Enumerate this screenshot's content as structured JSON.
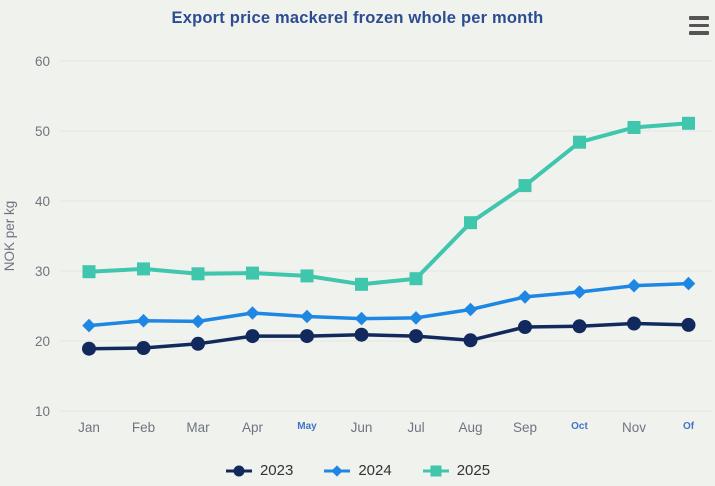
{
  "chart_data": {
    "type": "line",
    "title": "Export price mackerel frozen whole per month",
    "xlabel": "",
    "ylabel": "NOK per kg",
    "ylim": [
      10,
      60
    ],
    "y_ticks": [
      10,
      20,
      30,
      40,
      50,
      60
    ],
    "grid": "horizontal",
    "legend_position": "bottom-center",
    "categories": [
      "Jan",
      "Feb",
      "Mar",
      "Apr",
      "May",
      "Jun",
      "Jul",
      "Aug",
      "Sep",
      "Oct",
      "Nov",
      "Of"
    ],
    "x_tick_styles": [
      "normal",
      "normal",
      "normal",
      "normal",
      "small-blue",
      "normal",
      "normal",
      "normal",
      "normal",
      "small-blue",
      "normal",
      "small-blue"
    ],
    "series": [
      {
        "name": "2023",
        "color": "#12295d",
        "marker": "circle",
        "values": [
          18.9,
          19.0,
          19.6,
          20.7,
          20.7,
          20.9,
          20.7,
          20.1,
          22.0,
          22.1,
          22.5,
          22.3
        ]
      },
      {
        "name": "2024",
        "color": "#1e87e4",
        "marker": "diamond",
        "values": [
          22.2,
          22.9,
          22.8,
          24.0,
          23.5,
          23.2,
          23.3,
          24.5,
          26.3,
          27.0,
          27.9,
          28.2
        ]
      },
      {
        "name": "2025",
        "color": "#3fc6ad",
        "marker": "square",
        "values": [
          29.9,
          30.3,
          29.6,
          29.7,
          29.3,
          28.1,
          28.9,
          36.9,
          42.2,
          48.4,
          50.5,
          51.1
        ]
      }
    ],
    "colors": {
      "background": "#f0f2ee",
      "title": "#2c4d91",
      "gridline": "#e3e5e1",
      "axis_label": "#6e7580",
      "small_tick": "#4473c5",
      "legend_text": "#333333",
      "menu_icon": "#555555"
    },
    "icons": {
      "context_menu": "hamburger-icon"
    }
  }
}
